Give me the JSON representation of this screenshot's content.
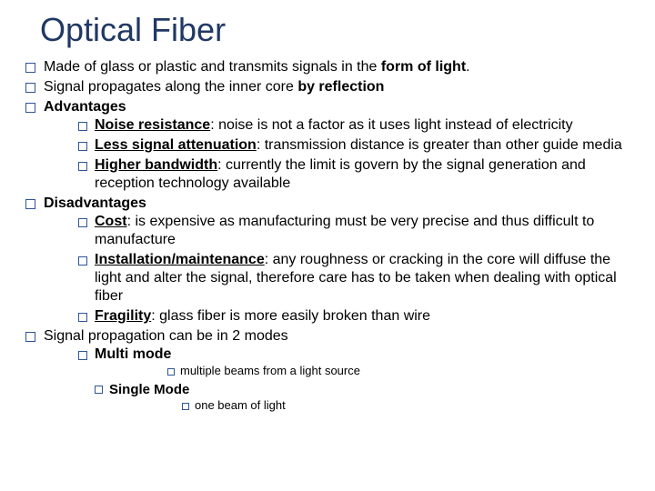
{
  "title": "Optical Fiber",
  "colors": {
    "title": "#203864",
    "bullet_border": "#2f5597",
    "text": "#000000",
    "background": "#ffffff"
  },
  "items": [
    {
      "pre": "Made of glass or plastic and transmits signals in the ",
      "bold": "form of light",
      "post": "."
    },
    {
      "pre": "Signal propagates along the inner core ",
      "bold": "by reflection",
      "post": ""
    },
    {
      "bold": "Advantages"
    },
    {
      "bold_under": "Noise resistance",
      "rest": ": noise is not a factor as it uses light instead of electricity"
    },
    {
      "bold_under": "Less signal attenuation",
      "rest": ": transmission distance is greater than other guide media"
    },
    {
      "bold_under": "Higher bandwidth",
      "rest": ": currently the limit is govern by the signal generation and reception technology available"
    },
    {
      "bold": "Disadvantages"
    },
    {
      "bold_under": "Cost",
      "rest": ": is expensive as manufacturing must be very precise and thus difficult to manufacture"
    },
    {
      "bold_under": "Installation/maintenance",
      "rest": ": any roughness or cracking in the core will diffuse the light and alter the signal, therefore care has to be taken when dealing with optical fiber"
    },
    {
      "bold_under": "Fragility",
      "rest": ": glass fiber is more easily broken than wire"
    },
    {
      "plain": "Signal propagation can be in 2 modes"
    },
    {
      "bold": "Multi mode"
    },
    {
      "plain": "multiple beams from a light source"
    },
    {
      "bold": "Single Mode"
    },
    {
      "plain": "one beam of light"
    }
  ]
}
